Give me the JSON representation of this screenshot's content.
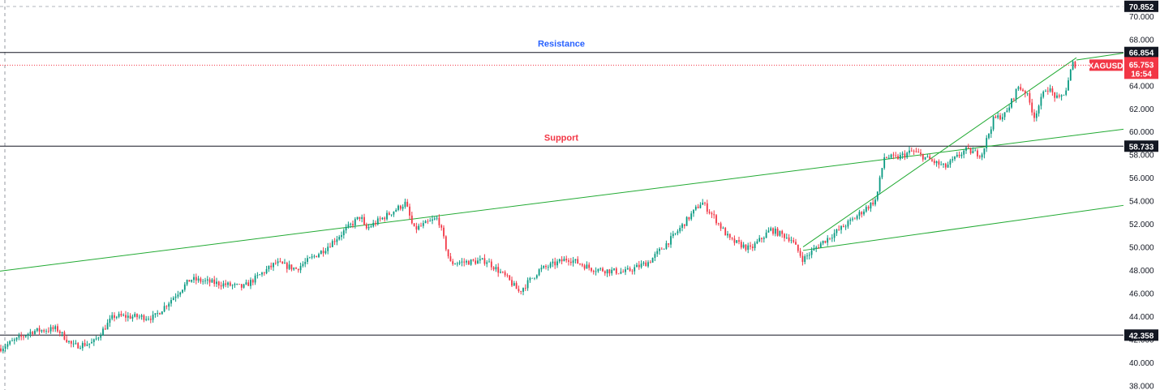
{
  "chart_data": {
    "type": "candlestick",
    "symbol": "XAGUSD",
    "y_axis": {
      "side": "right",
      "ticks": [
        "38.000",
        "40.000",
        "42.000",
        "44.000",
        "46.000",
        "48.000",
        "50.000",
        "52.000",
        "54.000",
        "56.000",
        "58.000",
        "60.000",
        "62.000",
        "64.000",
        "66.000",
        "68.000",
        "70.000"
      ],
      "ylim": [
        37.6,
        71.4
      ]
    },
    "last_price": {
      "symbol": "XAGUSD",
      "value": "65.753",
      "countdown": "16:54",
      "color": "#f23645"
    },
    "top_price_tag": {
      "value": "70.852"
    },
    "levels": [
      {
        "name": "Resistance",
        "value": 66.854,
        "tag": "66.854",
        "label_color": "#2962ff"
      },
      {
        "name": "Support",
        "value": 58.733,
        "tag": "58.733",
        "label_color": "#f23645"
      },
      {
        "name": "",
        "value": 42.358,
        "tag": "42.358",
        "label_color": "#000000"
      }
    ],
    "price_path": [
      [
        0,
        41.2
      ],
      [
        40,
        42.7
      ],
      [
        70,
        42.9
      ],
      [
        90,
        41.4
      ],
      [
        115,
        41.7
      ],
      [
        140,
        44.0
      ],
      [
        190,
        43.9
      ],
      [
        235,
        47.2
      ],
      [
        300,
        46.5
      ],
      [
        340,
        48.6
      ],
      [
        365,
        48.1
      ],
      [
        400,
        49.8
      ],
      [
        445,
        52.7
      ],
      [
        450,
        51.5
      ],
      [
        500,
        53.8
      ],
      [
        510,
        51.5
      ],
      [
        540,
        52.5
      ],
      [
        555,
        48.6
      ],
      [
        600,
        48.8
      ],
      [
        625,
        47.3
      ],
      [
        640,
        46.1
      ],
      [
        665,
        48.0
      ],
      [
        700,
        49.0
      ],
      [
        730,
        48.1
      ],
      [
        770,
        47.8
      ],
      [
        800,
        48.7
      ],
      [
        830,
        50.9
      ],
      [
        865,
        53.9
      ],
      [
        880,
        52.6
      ],
      [
        900,
        50.6
      ],
      [
        925,
        49.8
      ],
      [
        950,
        51.5
      ],
      [
        975,
        50.7
      ],
      [
        990,
        48.9
      ],
      [
        1010,
        50.2
      ],
      [
        1050,
        52.3
      ],
      [
        1080,
        54.1
      ],
      [
        1090,
        57.8
      ],
      [
        1105,
        57.7
      ],
      [
        1125,
        58.3
      ],
      [
        1150,
        57.4
      ],
      [
        1165,
        56.9
      ],
      [
        1190,
        58.4
      ],
      [
        1210,
        58.0
      ],
      [
        1225,
        61.1
      ],
      [
        1240,
        61.5
      ],
      [
        1255,
        63.9
      ],
      [
        1265,
        63.4
      ],
      [
        1275,
        61.3
      ],
      [
        1290,
        63.9
      ],
      [
        1305,
        62.7
      ],
      [
        1315,
        63.7
      ],
      [
        1322,
        65.9
      ],
      [
        1327,
        65.75
      ]
    ],
    "trendlines": [
      {
        "from": [
          0,
          47.9
        ],
        "to": [
          1385,
          60.2
        ],
        "color": "#22aa33"
      },
      {
        "from": [
          990,
          49.7
        ],
        "to": [
          1385,
          53.6
        ],
        "color": "#22aa33"
      },
      {
        "from": [
          990,
          50.0
        ],
        "to": [
          1327,
          66.4
        ],
        "color": "#22aa33"
      },
      {
        "from": [
          1327,
          66.2
        ],
        "to": [
          1385,
          66.8
        ],
        "color": "#22aa33"
      }
    ],
    "up_color": "#089981",
    "down_color": "#f23645",
    "grid": false
  }
}
